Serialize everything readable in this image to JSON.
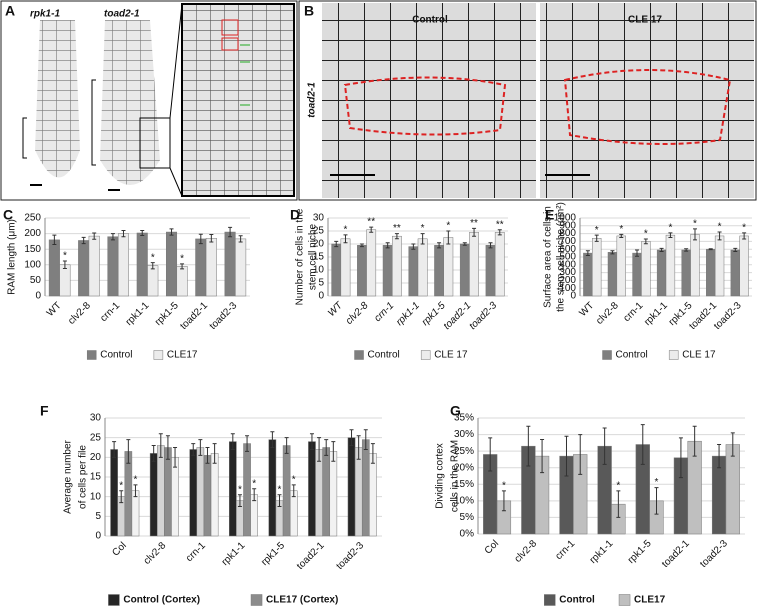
{
  "figure": {
    "panel_labels": [
      "A",
      "B",
      "C",
      "D",
      "E",
      "F",
      "G"
    ],
    "micrographs": {
      "A": {
        "labels": [
          "rpk1-1",
          "toad2-1"
        ]
      },
      "B": {
        "row_label": "toad2-1",
        "labels": [
          "Control",
          "CLE 17"
        ]
      }
    }
  },
  "chart_data": [
    {
      "type": "bar",
      "ylabel": [
        "RAM length (μm)"
      ],
      "categories": [
        "WT",
        "clv2-8",
        "crn-1",
        "rpk1-1",
        "rpk1-5",
        "toad2-1",
        "toad2-3"
      ],
      "series": [
        {
          "name": "Control",
          "color": "#7f7f7f",
          "values": [
            180,
            178,
            190,
            202,
            205,
            183,
            205
          ],
          "errors": [
            15,
            10,
            10,
            8,
            10,
            15,
            15
          ],
          "significance": [
            null,
            null,
            null,
            null,
            null,
            null,
            null
          ]
        },
        {
          "name": "CLE17",
          "color": "#ececec",
          "values": [
            100,
            192,
            200,
            97,
            95,
            185,
            183
          ],
          "errors": [
            12,
            10,
            10,
            10,
            8,
            12,
            10
          ],
          "significance": [
            "*",
            null,
            null,
            "*",
            "*",
            null,
            null
          ]
        }
      ],
      "ylim": [
        0,
        250
      ],
      "yticks": [
        0,
        50,
        100,
        150,
        200,
        250
      ],
      "italic_categories": false
    },
    {
      "type": "bar",
      "ylabel": [
        "Number of cells in the",
        "stem cell niche"
      ],
      "categories": [
        "WT",
        "clv2-8",
        "crn-1",
        "rpk1-1",
        "rpk1-5",
        "toad2-1",
        "toad2-3"
      ],
      "series": [
        {
          "name": "Control",
          "color": "#7f7f7f",
          "values": [
            20,
            19.5,
            19.5,
            19,
            19.5,
            20,
            19.5
          ],
          "errors": [
            1,
            0.5,
            1,
            1,
            1,
            0.5,
            1
          ],
          "significance": [
            null,
            null,
            null,
            null,
            null,
            null,
            null
          ]
        },
        {
          "name": "CLE 17",
          "color": "#ececec",
          "values": [
            22,
            25.5,
            23,
            22,
            22.5,
            24.5,
            24.5
          ],
          "errors": [
            1.5,
            1,
            1,
            2,
            2.5,
            1.5,
            1
          ],
          "significance": [
            "*",
            "**",
            "**",
            "*",
            "*",
            "**",
            "**"
          ]
        }
      ],
      "ylim": [
        0,
        30
      ],
      "yticks": [
        0,
        5,
        10,
        15,
        20,
        25,
        30
      ],
      "italic_categories": true
    },
    {
      "type": "bar",
      "ylabel": [
        "Surface area of cells in",
        "the stem cell niche (μm²)"
      ],
      "categories": [
        "WT",
        "clv2-8",
        "crn-1",
        "rpk1-1",
        "rpk1-5",
        "toad2-1",
        "toad2-3"
      ],
      "series": [
        {
          "name": "Control",
          "color": "#7f7f7f",
          "values": [
            550,
            560,
            550,
            590,
            590,
            600,
            590
          ],
          "errors": [
            30,
            20,
            40,
            20,
            15,
            5,
            20
          ],
          "significance": [
            null,
            null,
            null,
            null,
            null,
            null,
            null
          ]
        },
        {
          "name": "CLE 17",
          "color": "#ececec",
          "values": [
            740,
            770,
            700,
            780,
            790,
            770,
            770
          ],
          "errors": [
            40,
            20,
            30,
            30,
            70,
            50,
            40
          ],
          "significance": [
            "*",
            "*",
            "*",
            "*",
            "*",
            "*",
            "*"
          ]
        }
      ],
      "ylim": [
        0,
        1000
      ],
      "yticks": [
        0,
        100,
        200,
        300,
        400,
        500,
        600,
        700,
        800,
        900,
        1000
      ],
      "italic_categories": false
    },
    {
      "type": "bar",
      "ylabel": [
        "Average number",
        "of cells per file"
      ],
      "categories": [
        "Col",
        "clv2-8",
        "crn-1",
        "rpk1-1",
        "rpk1-5",
        "toad2-1",
        "toad2-3"
      ],
      "series": [
        {
          "name": "Control (Cortex)",
          "color": "#262626",
          "values": [
            22,
            21,
            22,
            24,
            24.5,
            24,
            25
          ],
          "errors": [
            2,
            2,
            1.5,
            2,
            2,
            2,
            2
          ],
          "significance": [
            null,
            null,
            null,
            null,
            null,
            null,
            null
          ]
        },
        {
          "name": null,
          "color": "#d4d4d4",
          "values": [
            10,
            23,
            22.5,
            9,
            9,
            22,
            22.5
          ],
          "errors": [
            1.5,
            3,
            2,
            1.5,
            1.5,
            3,
            3
          ],
          "significance": [
            "*",
            null,
            null,
            "*",
            "*",
            null,
            null
          ]
        },
        {
          "name": "CLE17 (Cortex)",
          "color": "#8c8c8c",
          "values": [
            21.5,
            22.5,
            20.5,
            23.5,
            23,
            22.5,
            24.5
          ],
          "errors": [
            3,
            3,
            2,
            2,
            2,
            2,
            2.5
          ],
          "significance": [
            null,
            null,
            null,
            null,
            null,
            null,
            null
          ]
        },
        {
          "name": null,
          "color": "#f2f2f2",
          "values": [
            11.5,
            20,
            21,
            10.5,
            11.5,
            21.5,
            21
          ],
          "errors": [
            1.5,
            2.5,
            2.5,
            1.5,
            1.5,
            2.5,
            2.5
          ],
          "significance": [
            "*",
            null,
            null,
            "*",
            "*",
            null,
            null
          ]
        }
      ],
      "ylim": [
        0,
        30
      ],
      "yticks": [
        0,
        5,
        10,
        15,
        20,
        25,
        30
      ],
      "italic_categories": false
    },
    {
      "type": "bar",
      "ylabel": [
        "Dividing cortex",
        "cells in the RAM"
      ],
      "categories": [
        "Col",
        "clv2-8",
        "crn-1",
        "rpk1-1",
        "rpk1-5",
        "toad2-1",
        "toad2-3"
      ],
      "series": [
        {
          "name": "Control",
          "color": "#595959",
          "values": [
            24,
            26.5,
            23.5,
            26.5,
            27,
            23,
            23.5
          ],
          "errors": [
            5,
            6,
            6,
            5.5,
            6,
            6,
            3.5
          ],
          "significance": [
            null,
            null,
            null,
            null,
            null,
            null,
            null
          ]
        },
        {
          "name": "CLE17",
          "color": "#bfbfbf",
          "values": [
            10,
            23.5,
            24,
            9,
            10,
            28,
            27
          ],
          "errors": [
            3,
            5,
            6,
            4,
            4,
            4.5,
            3.5
          ],
          "significance": [
            "*",
            null,
            null,
            "*",
            "*",
            null,
            null
          ]
        }
      ],
      "ylim": [
        0,
        35
      ],
      "yticks": [
        {
          "value": 0,
          "label": "0%"
        },
        {
          "value": 5,
          "label": "5%"
        },
        {
          "value": 10,
          "label": "10%"
        },
        {
          "value": 15,
          "label": "15%"
        },
        {
          "value": 20,
          "label": "20%"
        },
        {
          "value": 25,
          "label": "25%"
        },
        {
          "value": 30,
          "label": "30%"
        },
        {
          "value": 35,
          "label": "35%"
        }
      ],
      "italic_categories": false
    }
  ]
}
